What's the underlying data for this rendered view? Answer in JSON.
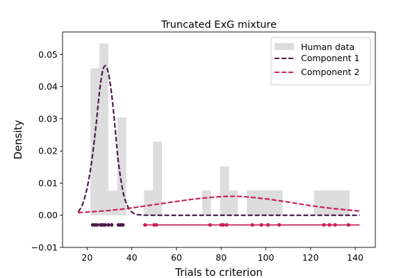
{
  "chart_data": {
    "type": "histogram",
    "title": "Truncated ExG mixture",
    "xlabel": "Trials to criterion",
    "ylabel": "Density",
    "xlim": [
      9,
      149
    ],
    "ylim": [
      -0.01,
      0.057
    ],
    "xticks": [
      20,
      40,
      60,
      80,
      100,
      120,
      140
    ],
    "yticks": [
      -0.01,
      0.0,
      0.01,
      0.02,
      0.03,
      0.04,
      0.05
    ],
    "ytick_labels": [
      "−0.01",
      "0.00",
      "0.01",
      "0.02",
      "0.03",
      "0.04",
      "0.05"
    ],
    "grid": false,
    "legend_position": "top-right",
    "histogram": {
      "name": "Human data",
      "color": "#dddddd",
      "bins": [
        {
          "x0": 21.5,
          "x1": 25.5,
          "height": 0.0457
        },
        {
          "x0": 25.5,
          "x1": 29.5,
          "height": 0.0534
        },
        {
          "x0": 29.5,
          "x1": 33.5,
          "height": 0.0077
        },
        {
          "x0": 33.5,
          "x1": 37.5,
          "height": 0.0304
        },
        {
          "x0": 45.5,
          "x1": 49.5,
          "height": 0.0077
        },
        {
          "x0": 49.5,
          "x1": 53.5,
          "height": 0.0229
        },
        {
          "x0": 71.5,
          "x1": 75.5,
          "height": 0.0077
        },
        {
          "x0": 79.5,
          "x1": 83.5,
          "height": 0.0152
        },
        {
          "x0": 83.5,
          "x1": 87.5,
          "height": 0.0077
        },
        {
          "x0": 91.5,
          "x1": 107.5,
          "height": 0.0077
        },
        {
          "x0": 121.5,
          "x1": 137.5,
          "height": 0.0077
        }
      ]
    },
    "series": [
      {
        "name": "Component 1",
        "color": "#4a1a4a",
        "style": "dashed",
        "x": [
          16,
          18,
          20,
          22,
          24,
          25,
          26,
          27,
          28,
          29,
          30,
          31,
          32,
          33,
          34,
          36,
          38,
          40,
          42,
          44,
          48,
          60,
          80,
          100,
          120,
          142
        ],
        "y": [
          0.001,
          0.0035,
          0.0085,
          0.0165,
          0.028,
          0.035,
          0.041,
          0.045,
          0.0465,
          0.0455,
          0.0425,
          0.0375,
          0.031,
          0.0235,
          0.0165,
          0.0075,
          0.003,
          0.001,
          0.0003,
          0.0001,
          0.0,
          0.0,
          0.0,
          0.0,
          0.0,
          0.0
        ]
      },
      {
        "name": "Component 2",
        "color": "#cc1e55",
        "style": "dashed",
        "x": [
          16,
          20,
          30,
          40,
          50,
          60,
          70,
          80,
          86,
          90,
          100,
          110,
          120,
          130,
          142
        ],
        "y": [
          0.0008,
          0.001,
          0.0015,
          0.0023,
          0.0033,
          0.0043,
          0.0052,
          0.0058,
          0.0059,
          0.0058,
          0.0051,
          0.0041,
          0.003,
          0.0021,
          0.0013
        ]
      }
    ],
    "rug": {
      "y": -0.003,
      "points": [
        {
          "x": 22.5,
          "component": 1
        },
        {
          "x": 23.5,
          "component": 1
        },
        {
          "x": 24.5,
          "component": 1
        },
        {
          "x": 26,
          "component": 1
        },
        {
          "x": 27,
          "component": 1
        },
        {
          "x": 28,
          "component": 1
        },
        {
          "x": 29.5,
          "component": 1
        },
        {
          "x": 31,
          "component": 1
        },
        {
          "x": 34,
          "component": 1
        },
        {
          "x": 35,
          "component": 1
        },
        {
          "x": 36,
          "component": 1
        },
        {
          "x": 46,
          "component": 2
        },
        {
          "x": 50,
          "component": 2
        },
        {
          "x": 51,
          "component": 2
        },
        {
          "x": 75,
          "component": 2
        },
        {
          "x": 80,
          "component": 2
        },
        {
          "x": 81,
          "component": 2
        },
        {
          "x": 82.5,
          "component": 2
        },
        {
          "x": 94,
          "component": 2
        },
        {
          "x": 98,
          "component": 2
        },
        {
          "x": 101,
          "component": 2
        },
        {
          "x": 106,
          "component": 2
        },
        {
          "x": 126,
          "component": 2
        },
        {
          "x": 128.5,
          "component": 2
        },
        {
          "x": 131,
          "component": 2
        },
        {
          "x": 137,
          "component": 2
        }
      ],
      "baseline": {
        "x0": 45,
        "x1": 142,
        "color": "#cc1e55"
      }
    }
  }
}
